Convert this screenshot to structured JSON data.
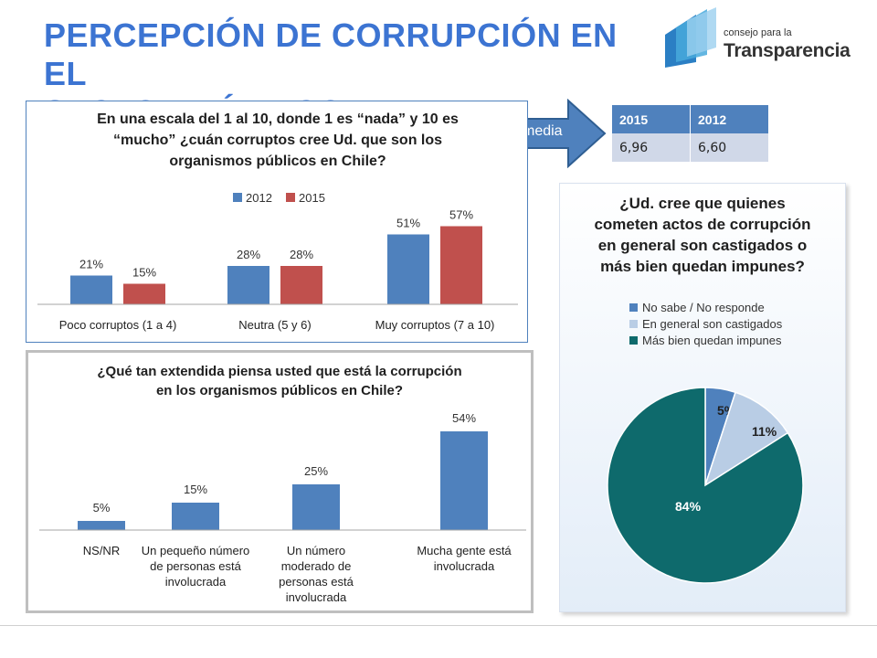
{
  "slide": {
    "title_line1": "PERCEPCIÓN DE CORRUPCIÓN EN EL",
    "title_line2": "SECTOR PÚBLICO",
    "accent_color": "#3c74d2"
  },
  "logo": {
    "line1": "consejo para la",
    "line2": "Transparencia"
  },
  "media": {
    "label": "media",
    "headers": [
      "2015",
      "2012"
    ],
    "values": [
      "6,96",
      "6,60"
    ]
  },
  "chart_data": [
    {
      "type": "bar",
      "title_lines": [
        "En una escala del 1 al 10, donde 1 es “nada” y 10 es",
        "“mucho” ¿cuán corruptos cree Ud. que son los",
        "organismos públicos en Chile?"
      ],
      "categories": [
        "Poco corruptos (1 a 4)",
        "Neutra (5 y 6)",
        "Muy corruptos (7 a 10)"
      ],
      "series": [
        {
          "name": "2012",
          "values": [
            21,
            28,
            51
          ],
          "labels": [
            "21%",
            "28%",
            "51%"
          ],
          "color": "#4f81bd"
        },
        {
          "name": "2015",
          "values": [
            15,
            28,
            57
          ],
          "labels": [
            "15%",
            "28%",
            "57%"
          ],
          "color": "#c0504d"
        }
      ],
      "legend": "top-center",
      "grid": false
    },
    {
      "type": "bar",
      "title_lines": [
        "¿Qué tan extendida piensa usted que está la corrupción",
        "en los organismos públicos en Chile?"
      ],
      "categories": [
        [
          "NS/NR"
        ],
        [
          "Un pequeño número",
          "de personas está",
          "involucrada"
        ],
        [
          "Un número",
          "moderado de",
          "personas está",
          "involucrada"
        ],
        [
          "Mucha gente está",
          "involucrada"
        ]
      ],
      "values": [
        5,
        15,
        25,
        54
      ],
      "labels": [
        "5%",
        "15%",
        "25%",
        "54%"
      ],
      "color": "#4f81bd",
      "grid": false
    },
    {
      "type": "pie",
      "title_lines": [
        "¿Ud. cree que quienes",
        "cometen actos de corrupción",
        "en general son castigados o",
        "más bien quedan impunes?"
      ],
      "slices": [
        {
          "name": "No sabe / No responde",
          "value": 5,
          "label": "5%",
          "color": "#4f81bd"
        },
        {
          "name": "En general son castigados",
          "value": 11,
          "label": "11%",
          "color": "#b9cde5"
        },
        {
          "name": "Más bien quedan impunes",
          "value": 84,
          "label": "84%",
          "color": "#0e6a6c"
        }
      ],
      "legend": "top-left"
    }
  ]
}
